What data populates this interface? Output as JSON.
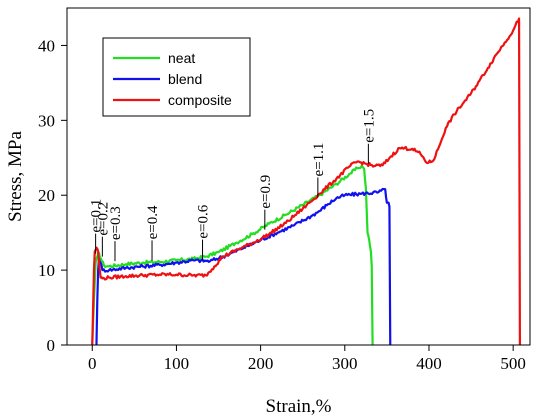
{
  "chart_data": {
    "type": "line",
    "xlabel": "Strain,%",
    "ylabel": "Stress, MPa",
    "xlim": [
      -30,
      520
    ],
    "ylim": [
      0,
      45
    ],
    "x_ticks": [
      0,
      100,
      200,
      300,
      400,
      500
    ],
    "y_ticks": [
      0,
      10,
      20,
      30,
      40
    ],
    "grid": false,
    "legend_position": "top-left",
    "series": [
      {
        "name": "neat",
        "color": "#22dd22",
        "points": [
          [
            0,
            0
          ],
          [
            2,
            6
          ],
          [
            4,
            11
          ],
          [
            6,
            11.8
          ],
          [
            8,
            12.3
          ],
          [
            10,
            11.6
          ],
          [
            14,
            10.6
          ],
          [
            20,
            10.5
          ],
          [
            40,
            10.8
          ],
          [
            60,
            11
          ],
          [
            80,
            11.1
          ],
          [
            100,
            11.3
          ],
          [
            120,
            11.5
          ],
          [
            135,
            11.8
          ],
          [
            150,
            12.4
          ],
          [
            170,
            13.6
          ],
          [
            190,
            14.8
          ],
          [
            210,
            16.2
          ],
          [
            230,
            17.4
          ],
          [
            250,
            18.7
          ],
          [
            270,
            20
          ],
          [
            290,
            21.5
          ],
          [
            305,
            22.8
          ],
          [
            315,
            23.6
          ],
          [
            320,
            23.9
          ],
          [
            323,
            23.5
          ],
          [
            325,
            21
          ],
          [
            327,
            15
          ],
          [
            329,
            14
          ],
          [
            331,
            12.5
          ],
          [
            332,
            10.5
          ],
          [
            333,
            0
          ]
        ]
      },
      {
        "name": "blend",
        "color": "#1111ee",
        "points": [
          [
            5,
            0
          ],
          [
            6,
            6
          ],
          [
            7,
            10
          ],
          [
            8,
            11.5
          ],
          [
            10,
            11
          ],
          [
            12,
            10
          ],
          [
            20,
            10
          ],
          [
            40,
            10.3
          ],
          [
            60,
            10.5
          ],
          [
            80,
            10.7
          ],
          [
            100,
            11
          ],
          [
            120,
            11.3
          ],
          [
            140,
            11.2
          ],
          [
            160,
            12
          ],
          [
            180,
            13
          ],
          [
            200,
            14
          ],
          [
            220,
            15
          ],
          [
            240,
            16
          ],
          [
            260,
            17.2
          ],
          [
            270,
            17.9
          ],
          [
            280,
            18.8
          ],
          [
            290,
            19.6
          ],
          [
            300,
            20
          ],
          [
            320,
            20.2
          ],
          [
            340,
            20.4
          ],
          [
            348,
            20.8
          ],
          [
            350,
            19
          ],
          [
            352,
            19
          ],
          [
            353,
            18.5
          ],
          [
            354,
            0
          ]
        ]
      },
      {
        "name": "composite",
        "color": "#ee1111",
        "points": [
          [
            0,
            0
          ],
          [
            1,
            5
          ],
          [
            2,
            10
          ],
          [
            3,
            12.5
          ],
          [
            5,
            13
          ],
          [
            7,
            12.5
          ],
          [
            8,
            11
          ],
          [
            10,
            9
          ],
          [
            12,
            8.9
          ],
          [
            20,
            9
          ],
          [
            40,
            9.2
          ],
          [
            60,
            9.3
          ],
          [
            80,
            9.4
          ],
          [
            100,
            9.4
          ],
          [
            120,
            9.3
          ],
          [
            135,
            9.3
          ],
          [
            145,
            10.5
          ],
          [
            155,
            11.8
          ],
          [
            170,
            12.6
          ],
          [
            190,
            13.6
          ],
          [
            210,
            14.8
          ],
          [
            230,
            16.3
          ],
          [
            250,
            18.2
          ],
          [
            270,
            20.2
          ],
          [
            290,
            22.2
          ],
          [
            305,
            23.8
          ],
          [
            315,
            24.5
          ],
          [
            325,
            24.2
          ],
          [
            335,
            23.9
          ],
          [
            345,
            24
          ],
          [
            355,
            25.2
          ],
          [
            365,
            26.3
          ],
          [
            380,
            26.2
          ],
          [
            390,
            25.5
          ],
          [
            398,
            24.3
          ],
          [
            405,
            24.6
          ],
          [
            412,
            26.5
          ],
          [
            420,
            29
          ],
          [
            430,
            30.8
          ],
          [
            440,
            32.2
          ],
          [
            450,
            33.6
          ],
          [
            460,
            35.3
          ],
          [
            470,
            37
          ],
          [
            480,
            38.8
          ],
          [
            490,
            40.4
          ],
          [
            500,
            42
          ],
          [
            507,
            43.6
          ],
          [
            508,
            0
          ]
        ]
      }
    ],
    "annotations": [
      {
        "text": "e=0.1",
        "x": 4,
        "y": 12.2
      },
      {
        "text": "e=0.2",
        "x": 12,
        "y": 11.8
      },
      {
        "text": "e=0.3",
        "x": 27,
        "y": 11.2
      },
      {
        "text": "e=0.4",
        "x": 71,
        "y": 11.3
      },
      {
        "text": "e=0.6",
        "x": 131,
        "y": 11.4
      },
      {
        "text": "e=0.9",
        "x": 205,
        "y": 15.4
      },
      {
        "text": "e=1.1",
        "x": 268,
        "y": 19.7
      },
      {
        "text": "e=1.5",
        "x": 328,
        "y": 24.2
      }
    ]
  }
}
